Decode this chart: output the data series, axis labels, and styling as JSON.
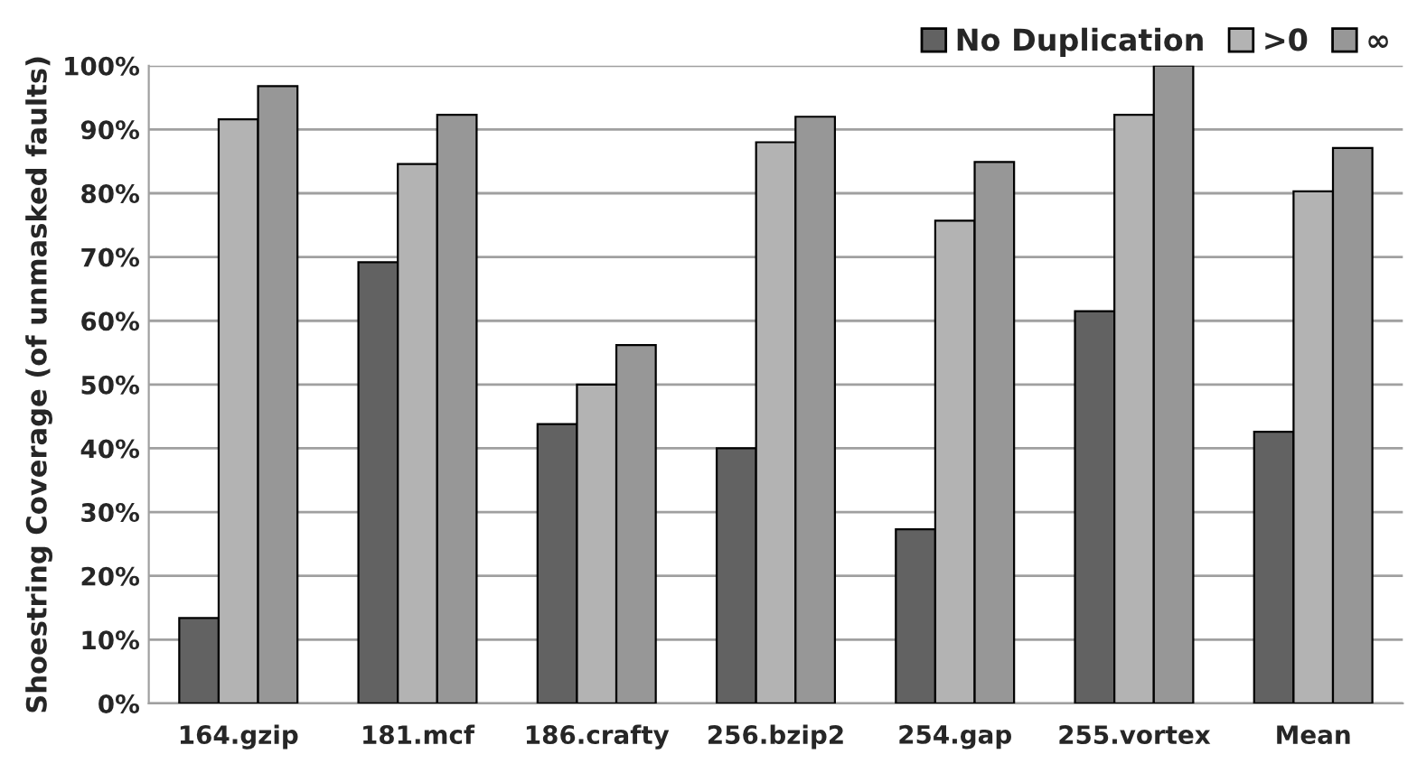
{
  "chart_data": {
    "type": "bar",
    "ylabel": "Shoestring Coverage (of unmasked faults)",
    "categories": [
      "164.gzip",
      "181.mcf",
      "186.crafty",
      "256.bzip2",
      "254.gap",
      "255.vortex",
      "Mean"
    ],
    "series": [
      {
        "name": "No Duplication",
        "color": "#626262",
        "values": [
          13.4,
          69.2,
          43.8,
          40.0,
          27.3,
          61.5,
          42.6
        ]
      },
      {
        "name": ">0",
        "color": "#b3b3b3",
        "values": [
          91.6,
          84.6,
          50.0,
          88.0,
          75.7,
          92.3,
          80.3
        ]
      },
      {
        "name": "∞",
        "color": "#979797",
        "values": [
          96.8,
          92.3,
          56.2,
          92.0,
          84.9,
          100.0,
          87.1
        ]
      }
    ],
    "ylim": [
      0,
      100
    ],
    "yticks": [
      {
        "value": 0,
        "label": "0%"
      },
      {
        "value": 10,
        "label": "10%"
      },
      {
        "value": 20,
        "label": "20%"
      },
      {
        "value": 30,
        "label": "30%"
      },
      {
        "value": 40,
        "label": "40%"
      },
      {
        "value": 50,
        "label": "50%"
      },
      {
        "value": 60,
        "label": "60%"
      },
      {
        "value": 70,
        "label": "70%"
      },
      {
        "value": 80,
        "label": "80%"
      },
      {
        "value": 90,
        "label": "90%"
      },
      {
        "value": 100,
        "label": "100%"
      }
    ],
    "grid": "y",
    "legend": "top right"
  }
}
